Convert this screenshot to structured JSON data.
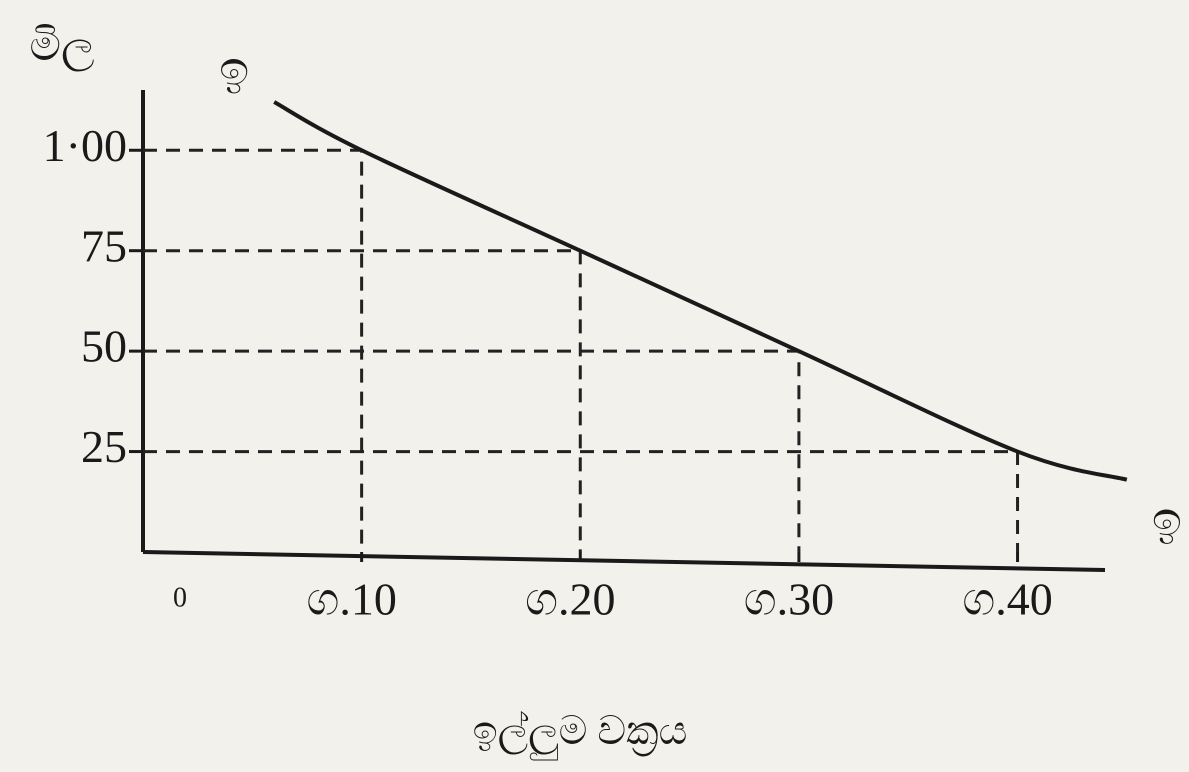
{
  "chart_data": {
    "type": "line",
    "y_label": "මිල",
    "x_label": "ඉල්ලුම වක්‍රය",
    "origin_label": "0",
    "curve_labels": [
      "ඉ",
      "ඉ"
    ],
    "x": [
      6,
      10,
      20,
      30,
      40,
      45
    ],
    "values": [
      112,
      100,
      75,
      50,
      25,
      18
    ],
    "color": "#1a1a1a",
    "xlim": [
      0,
      44
    ],
    "ylim": [
      0,
      115
    ],
    "xticks": [
      {
        "value": 10,
        "label": "ග.10"
      },
      {
        "value": 20,
        "label": "ග.20"
      },
      {
        "value": 30,
        "label": "ග.30"
      },
      {
        "value": 40,
        "label": "ග.40"
      }
    ],
    "yticks": [
      {
        "value": 100,
        "label": "1·00"
      },
      75,
      50,
      25
    ],
    "guides": true
  }
}
